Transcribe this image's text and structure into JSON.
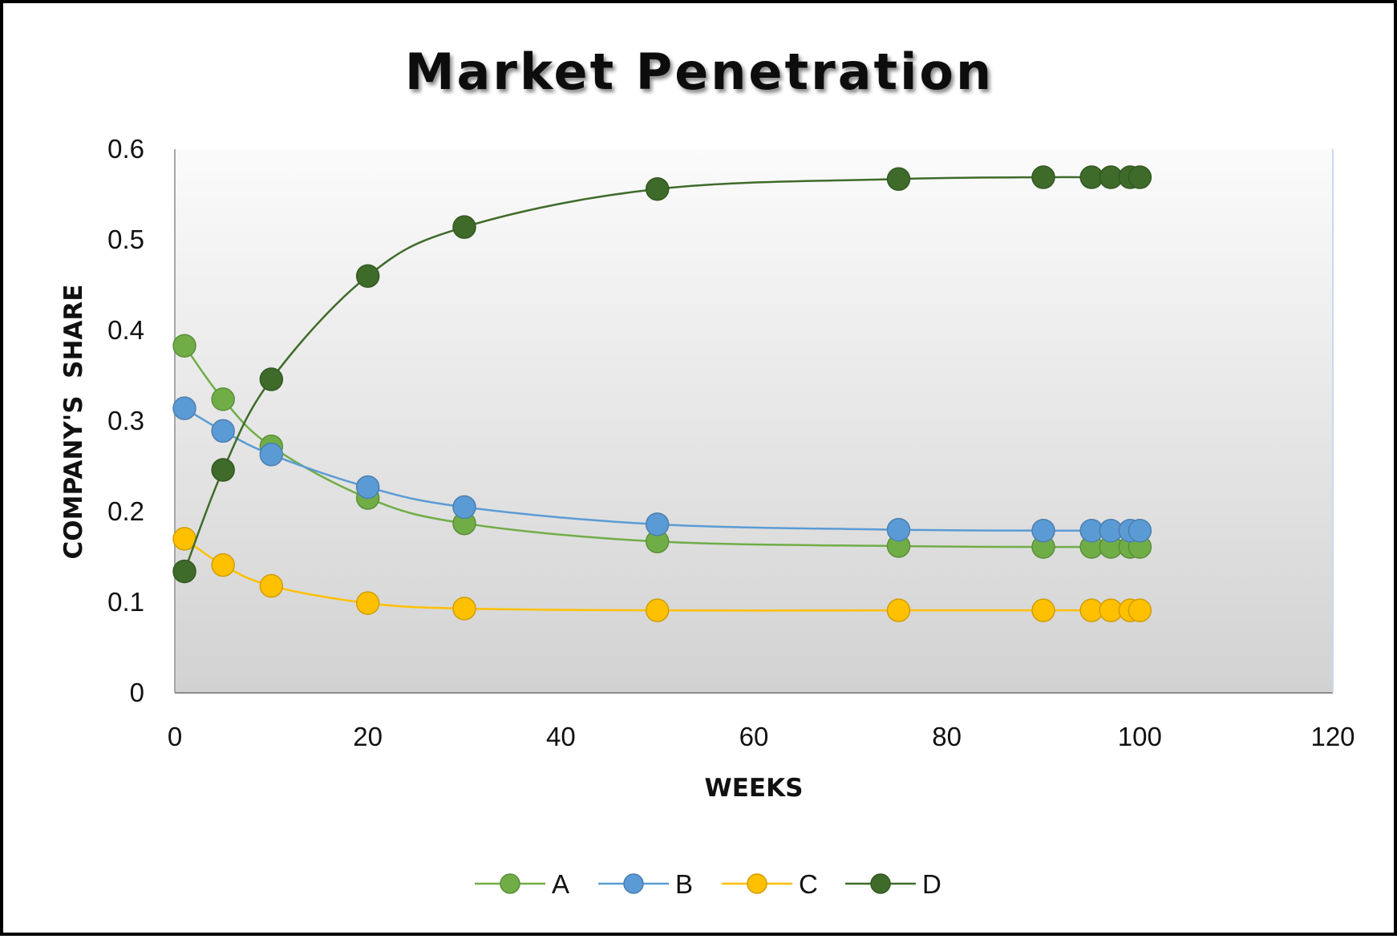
{
  "chart_data": {
    "type": "line",
    "title": "Market Penetration",
    "xlabel": "WEEKS",
    "ylabel": "COMPANY'S  SHARE",
    "xlim": [
      0,
      120
    ],
    "ylim": [
      0,
      0.6
    ],
    "x_ticks": [
      "0",
      "20",
      "40",
      "60",
      "80",
      "100",
      "120"
    ],
    "y_ticks": [
      "0",
      "0.1",
      "0.2",
      "0.3",
      "0.4",
      "0.5",
      "0.6"
    ],
    "x": [
      1,
      5,
      10,
      20,
      30,
      50,
      75,
      90,
      95,
      97,
      99,
      100
    ],
    "series": [
      {
        "name": "A",
        "color": "#70ad47",
        "values": [
          0.383,
          0.324,
          0.272,
          0.215,
          0.187,
          0.167,
          0.162,
          0.161,
          0.161,
          0.161,
          0.161,
          0.161
        ]
      },
      {
        "name": "B",
        "color": "#5b9bd5",
        "values": [
          0.314,
          0.289,
          0.263,
          0.227,
          0.205,
          0.186,
          0.18,
          0.179,
          0.179,
          0.179,
          0.179,
          0.179
        ]
      },
      {
        "name": "C",
        "color": "#ffc000",
        "values": [
          0.17,
          0.141,
          0.118,
          0.099,
          0.093,
          0.091,
          0.091,
          0.091,
          0.091,
          0.091,
          0.091,
          0.091
        ]
      },
      {
        "name": "D",
        "color": "#3e6b2a",
        "values": [
          0.134,
          0.246,
          0.346,
          0.46,
          0.514,
          0.556,
          0.567,
          0.569,
          0.569,
          0.569,
          0.569,
          0.569
        ]
      }
    ],
    "grid": false,
    "legend": "bottom",
    "plot_background": "gradient white-to-gray"
  }
}
